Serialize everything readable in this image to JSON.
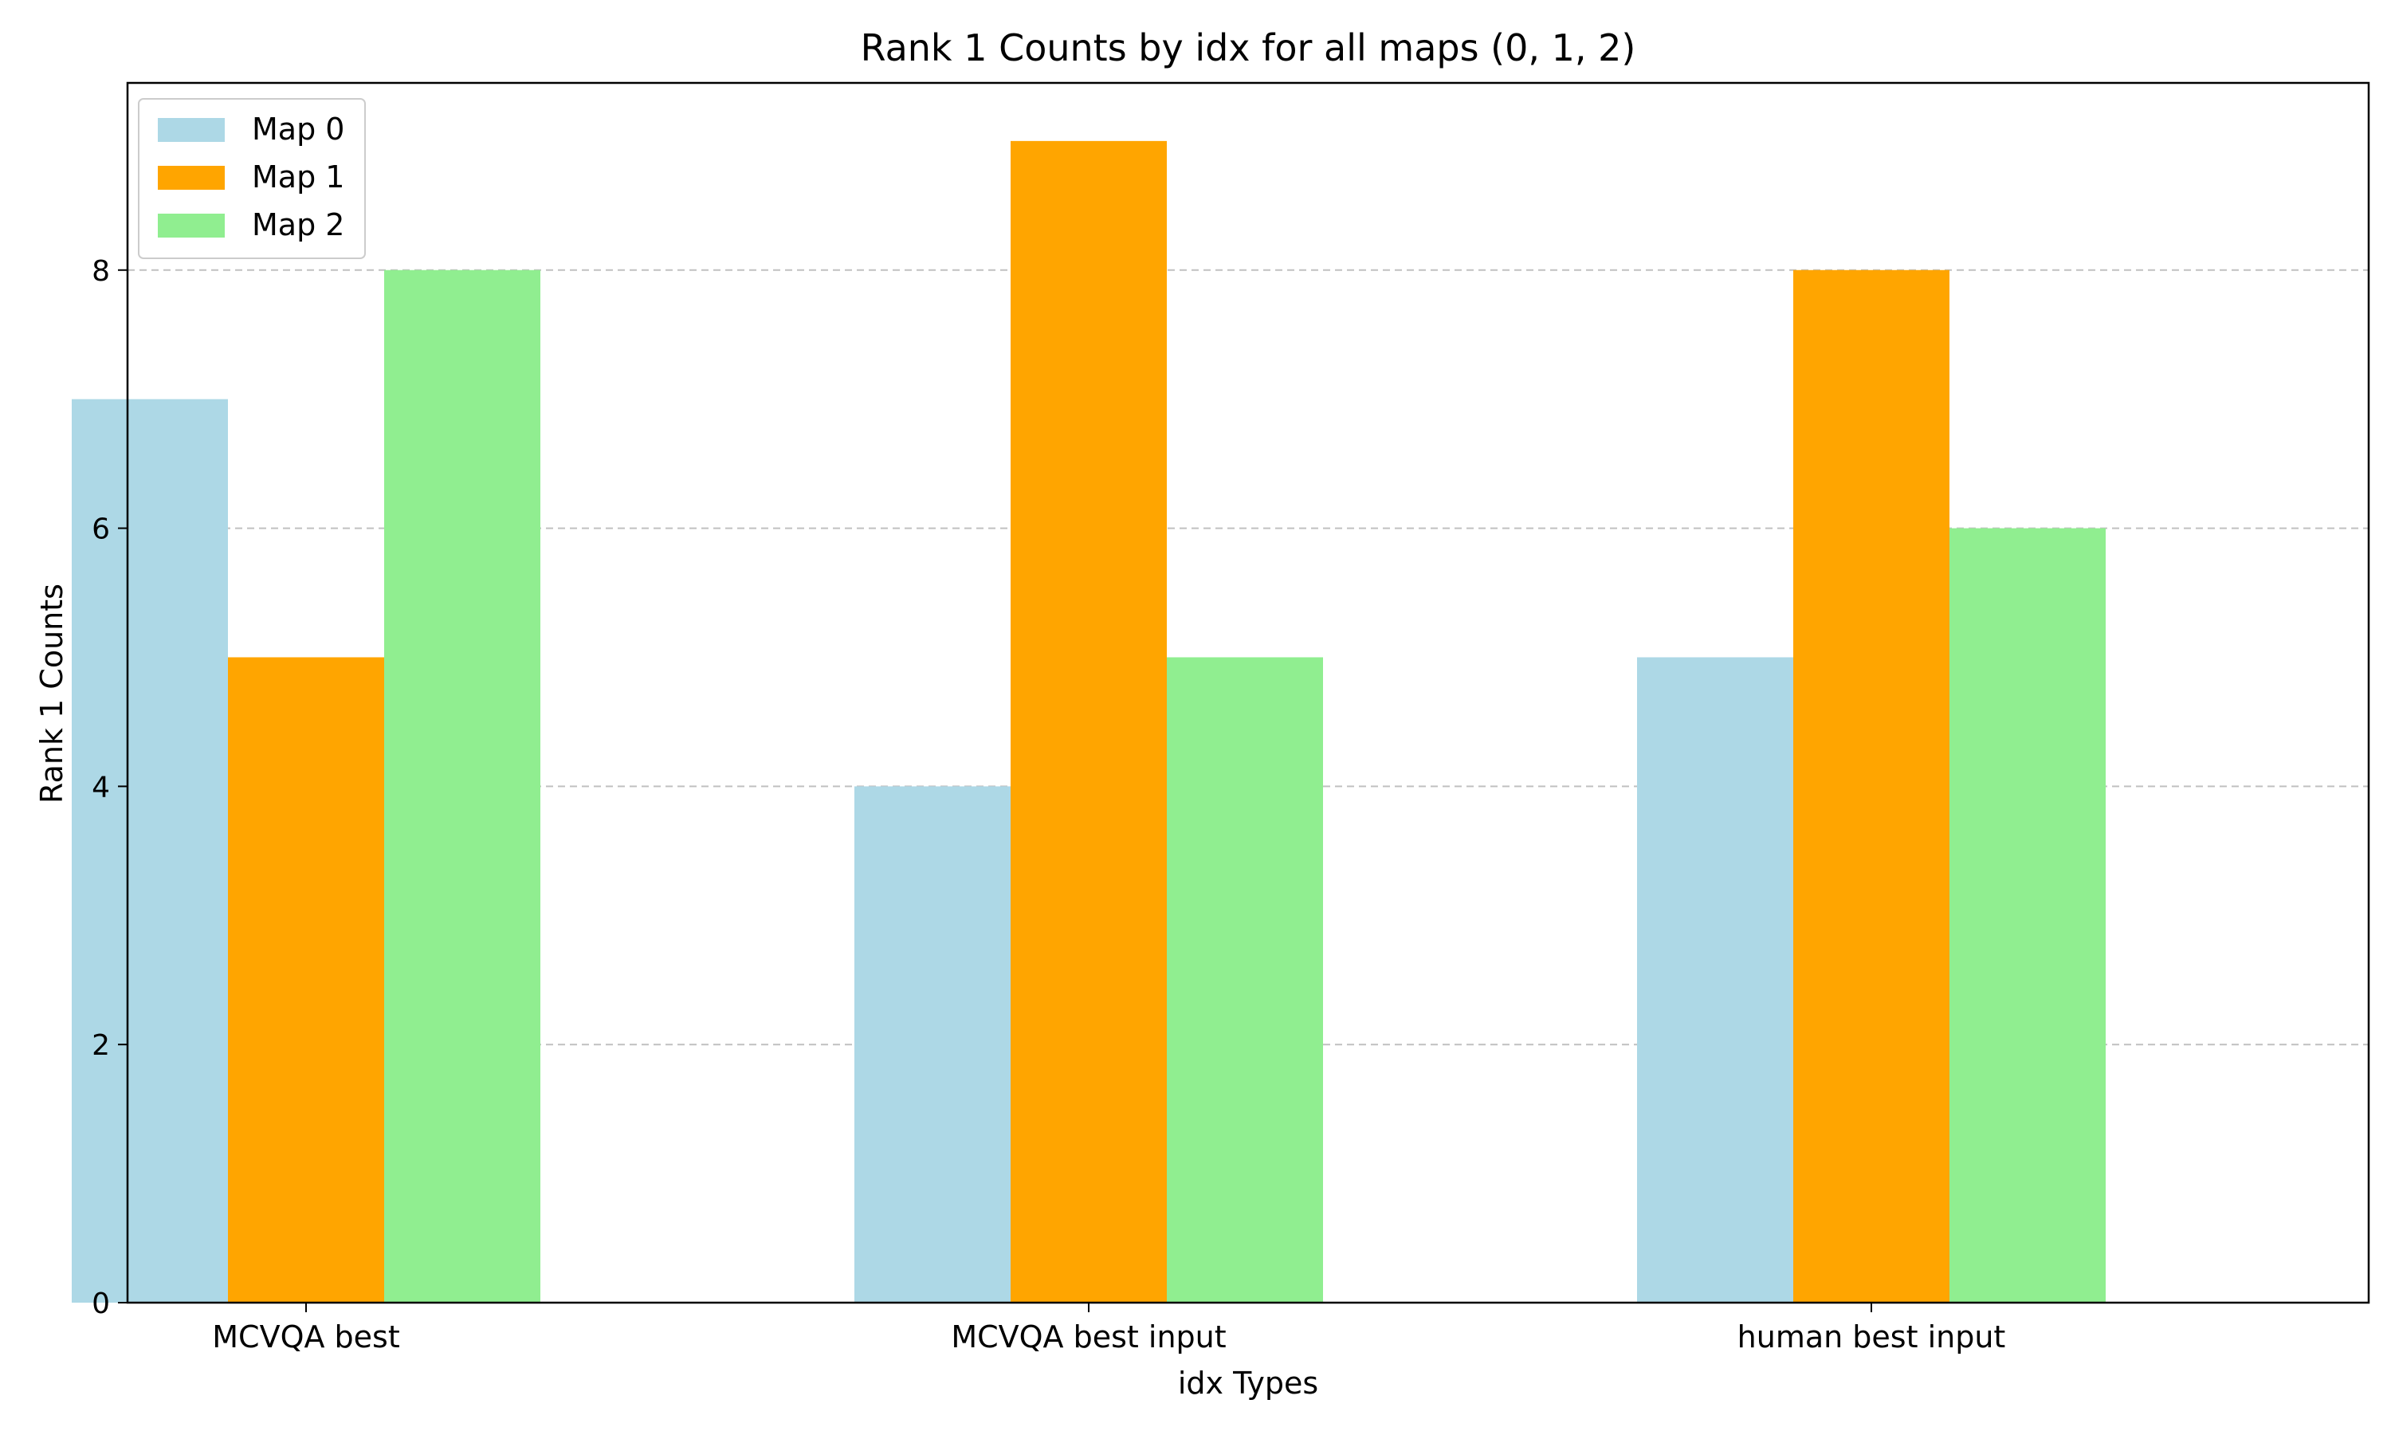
{
  "chart_data": {
    "type": "bar",
    "title": "Rank 1 Counts by idx for all maps (0, 1, 2)",
    "xlabel": "idx Types",
    "ylabel": "Rank 1 Counts",
    "categories": [
      "MCVQA best",
      "MCVQA best input",
      "human best input"
    ],
    "series": [
      {
        "name": "Map 0",
        "values": [
          7,
          4,
          5
        ],
        "color": "#add8e6"
      },
      {
        "name": "Map 1",
        "values": [
          5,
          9,
          8
        ],
        "color": "#ffa500"
      },
      {
        "name": "Map 2",
        "values": [
          8,
          5,
          6
        ],
        "color": "#90ee90"
      }
    ],
    "yticks": [
      0,
      2,
      4,
      6,
      8
    ],
    "ylim": [
      0,
      9.45
    ],
    "grid": "y-dashed",
    "legend_position": "top-left"
  }
}
